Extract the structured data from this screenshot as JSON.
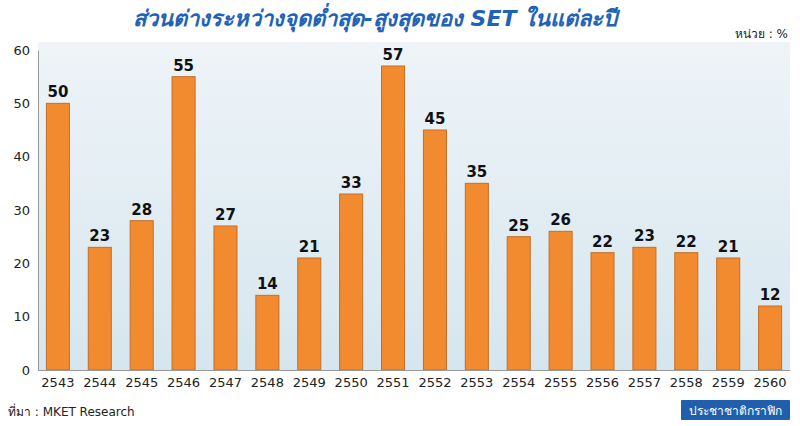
{
  "chart_data": {
    "type": "bar",
    "title": "ส่วนต่างระหว่างจุดต่ำสุด-สูงสุดของ SET ในแต่ละปี",
    "unit_label": "หน่วย : %",
    "source": "ที่มา : MKET Research",
    "credit": "ประชาชาติกราฟิก",
    "categories": [
      "2543",
      "2544",
      "2545",
      "2546",
      "2547",
      "2548",
      "2549",
      "2550",
      "2551",
      "2552",
      "2553",
      "2554",
      "2555",
      "2556",
      "2557",
      "2558",
      "2559",
      "2560"
    ],
    "values": [
      50,
      23,
      28,
      55,
      27,
      14,
      21,
      33,
      57,
      45,
      35,
      25,
      26,
      22,
      23,
      22,
      21,
      12
    ],
    "color": "#f28a30",
    "ylim": [
      0,
      60
    ],
    "yticks": [
      0,
      10,
      20,
      30,
      40,
      50,
      60
    ],
    "grid": false,
    "data_labels": true
  }
}
